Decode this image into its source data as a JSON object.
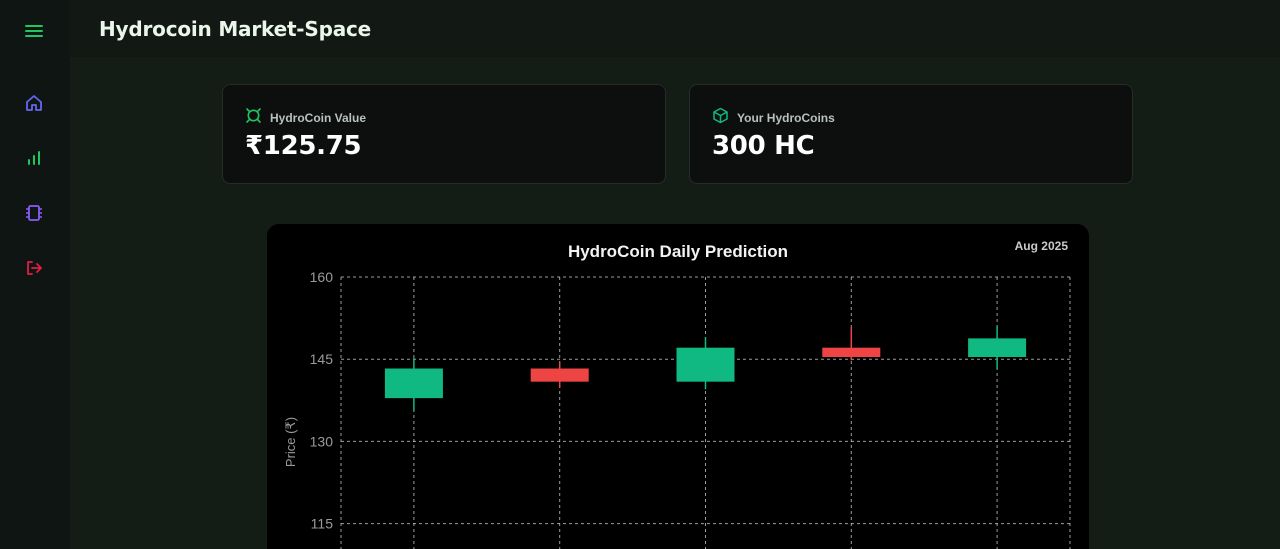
{
  "app": {
    "title": "Hydrocoin Market-Space"
  },
  "sidebar": {
    "items": [
      {
        "icon": "menu-icon",
        "color": "#22c55e"
      },
      {
        "icon": "home-icon",
        "color": "#6366f1"
      },
      {
        "icon": "bar-chart-icon",
        "color": "#22c55e"
      },
      {
        "icon": "chip-icon",
        "color": "#8b5cf6"
      },
      {
        "icon": "logout-icon",
        "color": "#e11d48"
      }
    ]
  },
  "stats": [
    {
      "label": "HydroCoin Value",
      "value": "₹125.75",
      "icon": "coin-icon",
      "icon_color": "#22c55e"
    },
    {
      "label": "Your HydroCoins",
      "value": "300 HC",
      "icon": "cube-icon",
      "icon_color": "#10b981"
    }
  ],
  "chart": {
    "period": "Aug 2025"
  },
  "chart_data": {
    "type": "candlestick",
    "title": "HydroCoin Daily Prediction",
    "ylabel": "Price (₹)",
    "ylim": [
      110,
      160
    ],
    "yticks": [
      "160",
      "145",
      "130",
      "115"
    ],
    "grid": true,
    "up_color": "#10b981",
    "down_color": "#ef4444",
    "candles": [
      {
        "open": 137.9,
        "close": 143.3,
        "high": 145.2,
        "low": 135.6
      },
      {
        "open": 143.3,
        "close": 140.9,
        "high": 144.5,
        "low": 139.8
      },
      {
        "open": 140.9,
        "close": 147.1,
        "high": 149.0,
        "low": 139.5
      },
      {
        "open": 147.1,
        "close": 145.4,
        "high": 150.8,
        "low": 144.8
      },
      {
        "open": 145.4,
        "close": 148.8,
        "high": 151.0,
        "low": 143.2
      }
    ]
  }
}
